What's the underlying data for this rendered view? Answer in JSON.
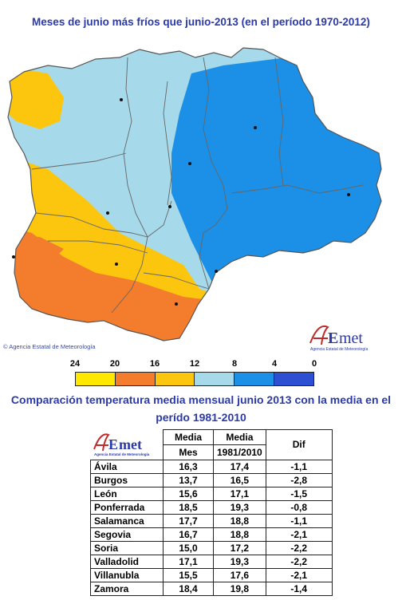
{
  "title": "Meses de junio más fríos que junio-2013 (en el período 1970-2012)",
  "credit": "© Agencia Estatal de Meteorología",
  "logo": {
    "text_a": "A",
    "text_e": "E",
    "text_met": "met",
    "subtitle": "Agencia Estatal de Meteorología"
  },
  "legend": {
    "labels": [
      "24",
      "20",
      "16",
      "12",
      "8",
      "4",
      "0"
    ],
    "colors": [
      "#ffe800",
      "#f47d2d",
      "#fcc60f",
      "#a6d9ea",
      "#1c8fe6",
      "#2d4fd2"
    ]
  },
  "map_colors": {
    "yellow": "#fcc60f",
    "light_yellow": "#ffe800",
    "orange": "#f47d2d",
    "light_blue": "#a6d9ea",
    "blue": "#1c8fe6"
  },
  "table_title": "Comparación temperatura media mensual junio 2013 con la media en el perído 1981-2010",
  "table": {
    "headers": {
      "media": "Media",
      "mes": "Mes",
      "media2": "Media",
      "period": "1981/2010",
      "dif": "Dif"
    },
    "rows": [
      {
        "city": "Ávila",
        "mes": "16,3",
        "media": "17,4",
        "dif": "-1,1"
      },
      {
        "city": "Burgos",
        "mes": "13,7",
        "media": "16,5",
        "dif": "-2,8"
      },
      {
        "city": "León",
        "mes": "15,6",
        "media": "17,1",
        "dif": "-1,5"
      },
      {
        "city": "Ponferrada",
        "mes": "18,5",
        "media": "19,3",
        "dif": "-0,8"
      },
      {
        "city": "Salamanca",
        "mes": "17,7",
        "media": "18,8",
        "dif": "-1,1"
      },
      {
        "city": "Segovia",
        "mes": "16,7",
        "media": "18,8",
        "dif": "-2,1"
      },
      {
        "city": "Soria",
        "mes": "15,0",
        "media": "17,2",
        "dif": "-2,2"
      },
      {
        "city": "Valladolid",
        "mes": "17,1",
        "media": "19,3",
        "dif": "-2,2"
      },
      {
        "city": "Villanubla",
        "mes": "15,5",
        "media": "17,6",
        "dif": "-2,1"
      },
      {
        "city": "Zamora",
        "mes": "18,4",
        "media": "19,8",
        "dif": "-1,4"
      }
    ]
  }
}
